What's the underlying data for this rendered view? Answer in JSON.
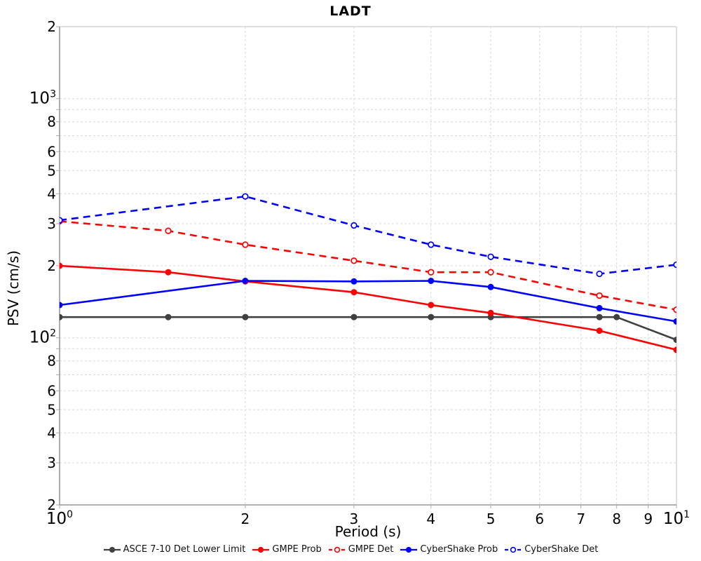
{
  "chart_data": {
    "type": "line",
    "title": "LADT",
    "xlabel": "Period (s)",
    "ylabel": "PSV (cm/s)",
    "x_scale": "log",
    "y_scale": "log",
    "xlim": [
      1,
      10
    ],
    "ylim": [
      20,
      2000
    ],
    "legend_position": "bottom",
    "x_ticks": [
      {
        "v": 1,
        "label": "10^0"
      },
      {
        "v": 2,
        "label": "2"
      },
      {
        "v": 3,
        "label": "3"
      },
      {
        "v": 4,
        "label": "4"
      },
      {
        "v": 5,
        "label": "5"
      },
      {
        "v": 6,
        "label": "6"
      },
      {
        "v": 7,
        "label": "7"
      },
      {
        "v": 8,
        "label": "8"
      },
      {
        "v": 9,
        "label": "9"
      },
      {
        "v": 10,
        "label": "10^1"
      }
    ],
    "y_ticks": [
      {
        "v": 2000,
        "label": "2"
      },
      {
        "v": 1000,
        "label": "10^3"
      },
      {
        "v": 800,
        "label": "8"
      },
      {
        "v": 600,
        "label": "6"
      },
      {
        "v": 500,
        "label": "5"
      },
      {
        "v": 400,
        "label": "4"
      },
      {
        "v": 300,
        "label": "3"
      },
      {
        "v": 200,
        "label": "2"
      },
      {
        "v": 100,
        "label": "10^2"
      },
      {
        "v": 80,
        "label": "8"
      },
      {
        "v": 60,
        "label": "6"
      },
      {
        "v": 50,
        "label": "5"
      },
      {
        "v": 40,
        "label": "4"
      },
      {
        "v": 30,
        "label": "3"
      },
      {
        "v": 20,
        "label": "2"
      }
    ],
    "grid": {
      "x_values": [
        2,
        3,
        4,
        5,
        6,
        7,
        8,
        9
      ],
      "y_values": [
        30,
        40,
        50,
        60,
        70,
        80,
        90,
        100,
        200,
        300,
        400,
        500,
        600,
        700,
        800,
        900,
        1000,
        2000
      ]
    },
    "style": {
      "grid_color": "#d8d8d8",
      "spine_dark": "#808080",
      "spine_light": "#c2c2c2",
      "tick_color": "#aaaaaa",
      "background": "#ffffff"
    },
    "series": [
      {
        "name": "ASCE 7-10 Det Lower Limit",
        "color": "#404040",
        "style": "solid",
        "marker": "filled",
        "x": [
          1,
          1.5,
          2,
          3,
          4,
          5,
          7.5,
          8,
          10
        ],
        "y": [
          122,
          122,
          122,
          122,
          122,
          122,
          122,
          122,
          98
        ]
      },
      {
        "name": "GMPE Prob",
        "color": "#ff0000",
        "style": "solid",
        "marker": "filled",
        "x": [
          1,
          1.5,
          2,
          3,
          4,
          5,
          7.5,
          10
        ],
        "y": [
          200,
          188,
          172,
          155,
          137,
          127,
          107,
          89
        ]
      },
      {
        "name": "GMPE Det",
        "color": "#ff0000",
        "style": "dashed",
        "marker": "open",
        "x": [
          1,
          1.5,
          2,
          3,
          4,
          5,
          7.5,
          10
        ],
        "y": [
          307,
          280,
          245,
          210,
          188,
          188,
          150,
          131
        ]
      },
      {
        "name": "CyberShake Prob",
        "color": "#0000ff",
        "style": "solid",
        "marker": "filled",
        "x": [
          1,
          2,
          3,
          4,
          5,
          7.5,
          10
        ],
        "y": [
          137,
          173,
          172,
          173,
          163,
          133,
          117
        ]
      },
      {
        "name": "CyberShake Det",
        "color": "#0000ff",
        "style": "dashed",
        "marker": "open",
        "x": [
          1,
          2,
          3,
          4,
          5,
          7.5,
          10
        ],
        "y": [
          310,
          390,
          295,
          245,
          218,
          185,
          202
        ]
      }
    ]
  }
}
